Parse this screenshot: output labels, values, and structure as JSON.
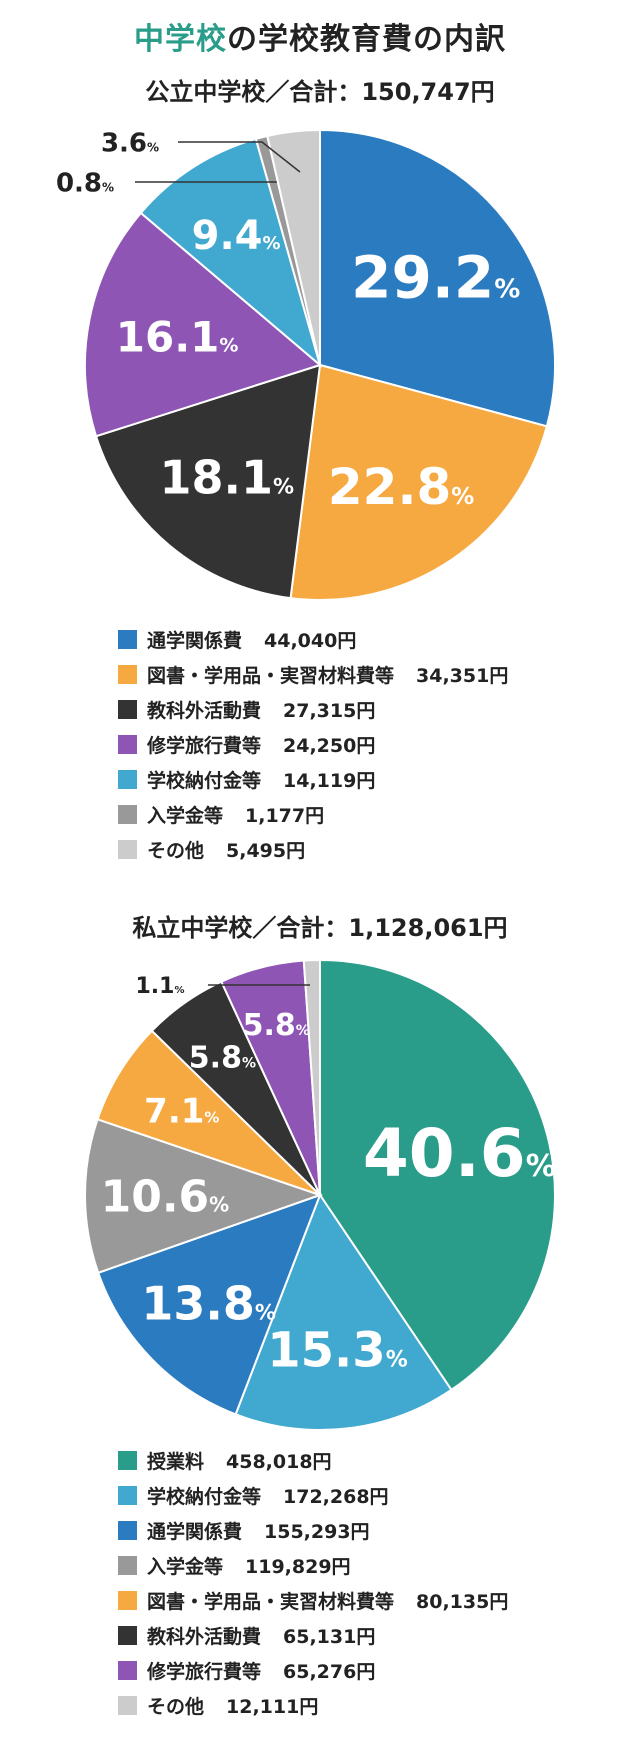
{
  "title": {
    "accent": "中学校",
    "rest": "の学校教育費の内訳"
  },
  "chart_data": [
    {
      "type": "pie",
      "title": "公立中学校／合計：150,747円",
      "slices": [
        {
          "label": "通学関係費",
          "amount": "44,040円",
          "percent": 29.2,
          "percent_label": "29.2",
          "color": "#2b7bc0"
        },
        {
          "label": "図書・学用品・実習材料費等",
          "amount": "34,351円",
          "percent": 22.8,
          "percent_label": "22.8",
          "color": "#f6a940"
        },
        {
          "label": "教科外活動費",
          "amount": "27,315円",
          "percent": 18.1,
          "percent_label": "18.1",
          "color": "#333333"
        },
        {
          "label": "修学旅行費等",
          "amount": "24,250円",
          "percent": 16.1,
          "percent_label": "16.1",
          "color": "#8e55b5"
        },
        {
          "label": "学校納付金等",
          "amount": "14,119円",
          "percent": 9.4,
          "percent_label": "9.4",
          "color": "#41a9d0"
        },
        {
          "label": "入学金等",
          "amount": "1,177円",
          "percent": 0.8,
          "percent_label": "0.8",
          "color": "#999999"
        },
        {
          "label": "その他",
          "amount": "5,495円",
          "percent": 3.6,
          "percent_label": "3.6",
          "color": "#cccccc"
        }
      ]
    },
    {
      "type": "pie",
      "title": "私立中学校／合計：1,128,061円",
      "slices": [
        {
          "label": "授業料",
          "amount": "458,018円",
          "percent": 40.6,
          "percent_label": "40.6",
          "color": "#2a9d8a"
        },
        {
          "label": "学校納付金等",
          "amount": "172,268円",
          "percent": 15.3,
          "percent_label": "15.3",
          "color": "#41a9d0"
        },
        {
          "label": "通学関係費",
          "amount": "155,293円",
          "percent": 13.8,
          "percent_label": "13.8",
          "color": "#2b7bc0"
        },
        {
          "label": "入学金等",
          "amount": "119,829円",
          "percent": 10.6,
          "percent_label": "10.6",
          "color": "#999999"
        },
        {
          "label": "図書・学用品・実習材料費等",
          "amount": "80,135円",
          "percent": 7.1,
          "percent_label": "7.1",
          "color": "#f6a940"
        },
        {
          "label": "教科外活動費",
          "amount": "65,131円",
          "percent": 5.8,
          "percent_label": "5.8",
          "color": "#333333"
        },
        {
          "label": "修学旅行費等",
          "amount": "65,276円",
          "percent": 5.8,
          "percent_label": "5.8",
          "color": "#8e55b5"
        },
        {
          "label": "その他",
          "amount": "12,111円",
          "percent": 1.1,
          "percent_label": "1.1",
          "color": "#cccccc"
        }
      ]
    }
  ],
  "percent_unit": "%"
}
